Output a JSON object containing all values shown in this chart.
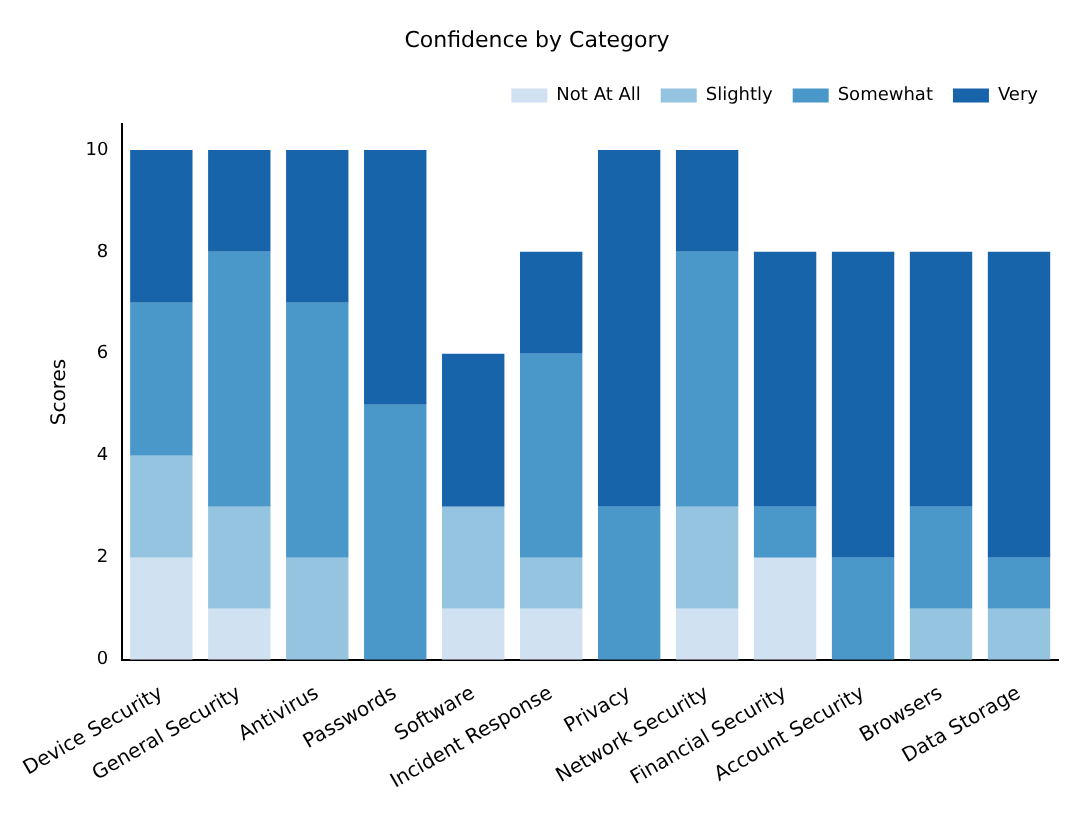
{
  "chart_data": {
    "type": "bar",
    "title": "Confidence by Category",
    "ylabel": "Scores",
    "categories": [
      "Device Security",
      "General Security",
      "Antivirus",
      "Passwords",
      "Software",
      "Incident Response",
      "Privacy",
      "Network Security",
      "Financial Security",
      "Account Security",
      "Browsers",
      "Data Storage"
    ],
    "series": [
      {
        "name": "Not At All",
        "color": "#d0e1f2",
        "values": [
          2,
          1,
          0,
          0,
          1,
          1,
          0,
          1,
          2,
          0,
          0,
          0
        ]
      },
      {
        "name": "Slightly",
        "color": "#94c4df",
        "values": [
          2,
          2,
          2,
          0,
          2,
          1,
          0,
          2,
          0,
          0,
          1,
          1
        ]
      },
      {
        "name": "Somewhat",
        "color": "#4a98c9",
        "values": [
          3,
          5,
          5,
          5,
          0,
          4,
          3,
          5,
          1,
          2,
          2,
          1
        ]
      },
      {
        "name": "Very",
        "color": "#1764ab",
        "values": [
          3,
          2,
          3,
          5,
          3,
          2,
          7,
          2,
          5,
          6,
          5,
          6
        ]
      }
    ],
    "stacked": true,
    "ylim": [
      0,
      10.5
    ],
    "yticks": [
      0,
      2,
      4,
      6,
      8,
      10
    ],
    "grid": false,
    "legend": "top right"
  }
}
